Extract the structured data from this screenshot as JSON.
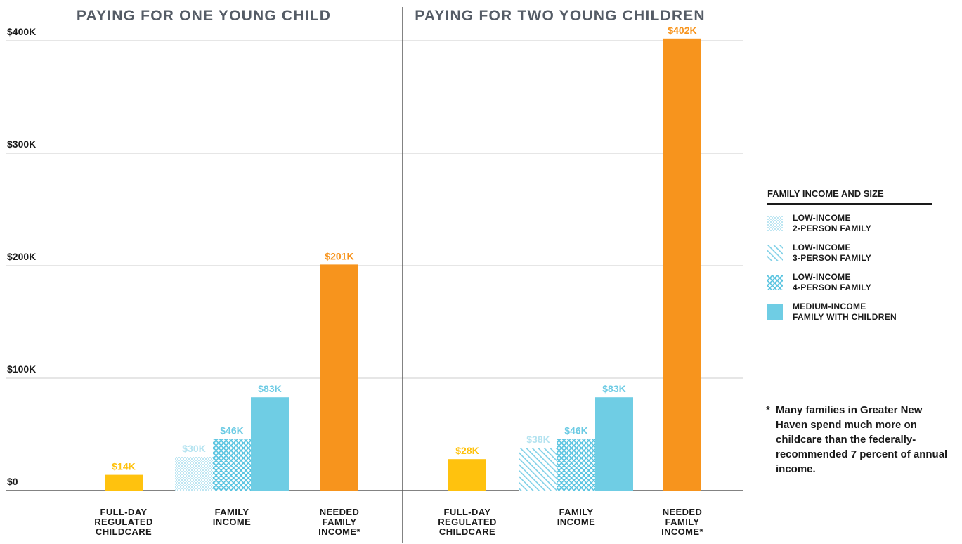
{
  "chart_data": {
    "type": "bar",
    "ylim": [
      0,
      400
    ],
    "ytick_values": [
      0,
      100,
      200,
      300,
      400
    ],
    "ytick_labels": [
      "$0",
      "$100K",
      "$200K",
      "$300K",
      "$400K"
    ],
    "colors": {
      "childcare": "#ffc20e",
      "needed": "#f7941d",
      "low_light": "#b4e3f0",
      "low_mid": "#6dcbe4",
      "medium": "#6fcde4",
      "axis": "#5a5a5a",
      "grid": "#cccccc",
      "title": "#555c66"
    },
    "panels": [
      {
        "title": "PAYING FOR ONE YOUNG CHILD",
        "groups": [
          {
            "label": "FULL-DAY\nREGULATED\nCHILDCARE",
            "bars": [
              {
                "series": "childcare",
                "value": 14,
                "label": "$14K"
              }
            ]
          },
          {
            "label": "FAMILY\nINCOME",
            "bars": [
              {
                "series": "low2",
                "value": 30,
                "label": "$30K"
              },
              {
                "series": "low4",
                "value": 46,
                "label": "$46K"
              },
              {
                "series": "medium",
                "value": 83,
                "label": "$83K"
              }
            ]
          },
          {
            "label": "NEEDED\nFAMILY\nINCOME*",
            "bars": [
              {
                "series": "needed",
                "value": 201,
                "label": "$201K"
              }
            ]
          }
        ]
      },
      {
        "title": "PAYING FOR TWO YOUNG CHILDREN",
        "groups": [
          {
            "label": "FULL-DAY\nREGULATED\nCHILDCARE",
            "bars": [
              {
                "series": "childcare",
                "value": 28,
                "label": "$28K"
              }
            ]
          },
          {
            "label": "FAMILY\nINCOME",
            "bars": [
              {
                "series": "low3",
                "value": 38,
                "label": "$38K"
              },
              {
                "series": "low4",
                "value": 46,
                "label": "$46K"
              },
              {
                "series": "medium",
                "value": 83,
                "label": "$83K"
              }
            ]
          },
          {
            "label": "NEEDED\nFAMILY\nINCOME*",
            "bars": [
              {
                "series": "needed",
                "value": 402,
                "label": "$402K"
              }
            ]
          }
        ]
      }
    ],
    "legend": {
      "title": "FAMILY INCOME AND SIZE",
      "placement": "right",
      "items": [
        {
          "series": "low2",
          "label": "LOW-INCOME\n2-PERSON FAMILY"
        },
        {
          "series": "low3",
          "label": "LOW-INCOME\n3-PERSON FAMILY"
        },
        {
          "series": "low4",
          "label": "LOW-INCOME\n4-PERSON FAMILY"
        },
        {
          "series": "medium",
          "label": "MEDIUM-INCOME\nFAMILY WITH CHILDREN"
        }
      ]
    },
    "footnote": {
      "marker": "*",
      "text": "Many families in Greater New Haven spend much more on childcare than the federally-recommended 7 percent of annual income."
    },
    "grid": true
  }
}
